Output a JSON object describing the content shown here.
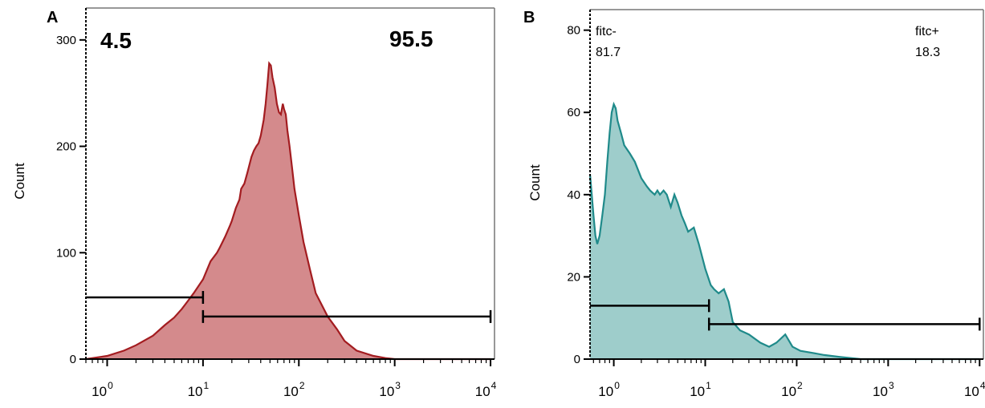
{
  "chart_data": [
    {
      "type": "area",
      "panel_label": "A",
      "ylabel": "Count",
      "xscale": "log",
      "xlim": [
        0.6,
        11000
      ],
      "ylim": [
        0,
        330
      ],
      "y_ticks": [
        0,
        100,
        200,
        300
      ],
      "x_ticks": [
        {
          "value": 1,
          "base": "10",
          "exp": "0"
        },
        {
          "value": 10,
          "base": "10",
          "exp": "1"
        },
        {
          "value": 100,
          "base": "10",
          "exp": "2"
        },
        {
          "value": 1000,
          "base": "10",
          "exp": "3"
        },
        {
          "value": 10000,
          "base": "10",
          "exp": "4"
        }
      ],
      "colors": {
        "fill": "#d48a8c",
        "line": "#a31c20",
        "gate": "#000000",
        "axis": "#000000"
      },
      "series": [
        {
          "x": [
            0.6,
            1.0,
            1.5,
            2.0,
            3.0,
            4.0,
            5.0,
            6.0,
            7.0,
            8.0,
            10,
            12,
            14,
            15,
            17,
            19,
            20,
            22,
            24,
            25,
            27,
            29,
            30,
            32,
            34,
            36,
            38,
            40,
            42,
            43,
            45,
            47,
            49,
            51,
            53,
            56,
            59,
            62,
            65,
            68,
            70,
            73,
            76,
            80,
            85,
            90,
            100,
            112,
            130,
            150,
            200,
            250,
            300,
            400,
            600,
            800,
            1000,
            10000
          ],
          "y": [
            0,
            3,
            8,
            13,
            22,
            32,
            39,
            47,
            55,
            62,
            75,
            92,
            100,
            105,
            115,
            125,
            130,
            142,
            150,
            160,
            165,
            175,
            180,
            190,
            196,
            200,
            203,
            210,
            220,
            225,
            240,
            258,
            278,
            276,
            265,
            255,
            240,
            232,
            230,
            240,
            235,
            230,
            215,
            200,
            180,
            160,
            135,
            110,
            85,
            62,
            40,
            28,
            17,
            8,
            3,
            1,
            0,
            0
          ]
        }
      ],
      "gates": [
        {
          "label": "4.5",
          "from": 0.6,
          "to": 10,
          "y": 58
        },
        {
          "label": "95.5",
          "from": 10,
          "to": 10000,
          "y": 40
        }
      ]
    },
    {
      "type": "area",
      "panel_label": "B",
      "ylabel": "Count",
      "xscale": "log",
      "xlim": [
        0.55,
        11000
      ],
      "ylim": [
        0,
        85
      ],
      "y_ticks": [
        0,
        20,
        40,
        60,
        80
      ],
      "y_tick_labels": [
        "0",
        "20",
        "40",
        "60",
        "80"
      ],
      "x_ticks": [
        {
          "value": 1,
          "base": "10",
          "exp": "0"
        },
        {
          "value": 10,
          "base": "10",
          "exp": "1"
        },
        {
          "value": 100,
          "base": "10",
          "exp": "2"
        },
        {
          "value": 1000,
          "base": "10",
          "exp": "3"
        },
        {
          "value": 10000,
          "base": "10",
          "exp": "4"
        }
      ],
      "colors": {
        "fill": "#9ecdcb",
        "line": "#1f8a8a",
        "gate": "#000000",
        "axis": "#000000"
      },
      "series": [
        {
          "x": [
            0.55,
            0.6,
            0.63,
            0.66,
            0.7,
            0.75,
            0.8,
            0.85,
            0.9,
            0.95,
            1.0,
            1.05,
            1.1,
            1.2,
            1.3,
            1.5,
            1.7,
            2.0,
            2.3,
            2.5,
            2.8,
            3.0,
            3.2,
            3.5,
            3.8,
            4.2,
            4.6,
            5.0,
            5.5,
            6.0,
            6.5,
            7.5,
            8.5,
            10,
            11.5,
            12.5,
            14,
            16,
            18,
            20,
            24,
            30,
            40,
            50,
            60,
            75,
            90,
            110,
            150,
            200,
            300,
            500,
            800,
            10000
          ],
          "y": [
            45,
            35,
            30,
            28,
            30,
            35,
            40,
            48,
            55,
            60,
            62,
            61,
            58,
            55,
            52,
            50,
            48,
            44,
            42,
            41,
            40,
            41,
            40,
            41,
            40,
            37,
            40,
            38,
            35,
            33,
            31,
            32,
            28,
            22,
            18,
            17,
            16,
            17,
            14,
            9,
            7,
            6,
            4,
            3,
            4,
            6,
            3,
            2,
            1.5,
            1,
            0.5,
            0,
            0,
            0
          ]
        }
      ],
      "gates": [
        {
          "label_top": "fitc-",
          "label_bottom": "81.7",
          "from": 0.55,
          "to": 11,
          "y": 13
        },
        {
          "label_top": "fitc+",
          "label_bottom": "18.3",
          "from": 11,
          "to": 10000,
          "y": 8.5
        }
      ]
    }
  ]
}
